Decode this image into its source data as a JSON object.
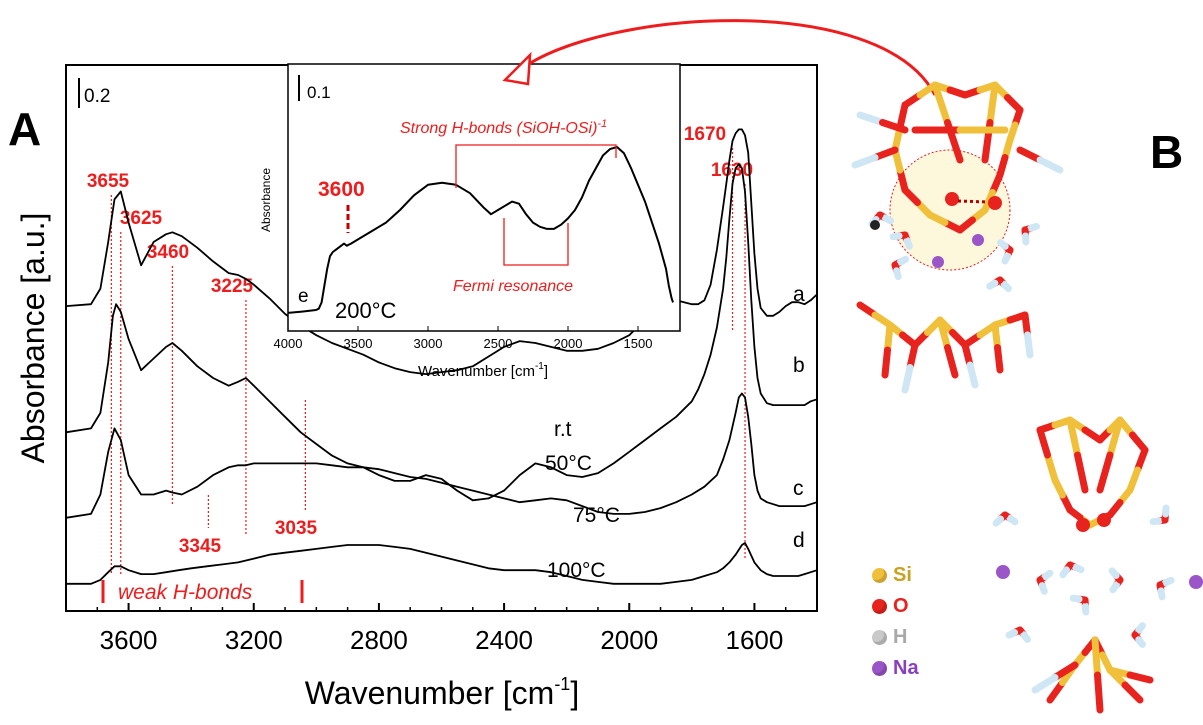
{
  "panel_a_label": "A",
  "panel_b_label": "B",
  "chart_data": [
    {
      "type": "line",
      "panel": "A",
      "xlabel": "Wavenumber [cm",
      "xlabel_sup": "-1",
      "xlabel_close": "]",
      "ylabel": "Absorbance [a.u.]",
      "xlim": [
        3800,
        1400
      ],
      "x_ticks": [
        3600,
        3200,
        2800,
        2400,
        2000,
        1600
      ],
      "scale_bar_label": "0.2",
      "series": [
        {
          "name": "a",
          "x": [
            3800,
            3720,
            3690,
            3665,
            3645,
            3625,
            3600,
            3560,
            3520,
            3480,
            3460,
            3430,
            3380,
            3330,
            3280,
            3250,
            3225,
            3200,
            3150,
            3100,
            3050,
            3000,
            2950,
            2900,
            2850,
            2800,
            2750,
            2700,
            2650,
            2600,
            2550,
            2500,
            2450,
            2400,
            2350,
            2300,
            2250,
            2200,
            2150,
            2100,
            2050,
            2000,
            1950,
            1900,
            1850,
            1800,
            1780,
            1760,
            1740,
            1720,
            1700,
            1690,
            1680,
            1670,
            1660,
            1650,
            1640,
            1630,
            1620,
            1610,
            1600,
            1590,
            1580,
            1560,
            1540,
            1520,
            1500,
            1480,
            1460,
            1440,
            1420,
            1400
          ],
          "y": [
            0.905,
            0.91,
            0.95,
            1.07,
            1.18,
            1.2,
            1.12,
            1.01,
            1.07,
            1.09,
            1.095,
            1.085,
            1.055,
            1.02,
            0.99,
            0.985,
            0.975,
            0.96,
            0.925,
            0.885,
            0.855,
            0.83,
            0.81,
            0.795,
            0.78,
            0.76,
            0.745,
            0.735,
            0.73,
            0.735,
            0.74,
            0.75,
            0.775,
            0.8,
            0.815,
            0.81,
            0.8,
            0.79,
            0.79,
            0.795,
            0.81,
            0.83,
            0.87,
            0.905,
            0.92,
            0.91,
            0.91,
            0.92,
            0.96,
            1.05,
            1.16,
            1.22,
            1.28,
            1.33,
            1.35,
            1.36,
            1.36,
            1.345,
            1.3,
            1.17,
            1.04,
            0.95,
            0.9,
            0.88,
            0.88,
            0.89,
            0.905,
            0.915,
            0.915,
            0.91,
            0.92,
            0.935
          ]
        },
        {
          "name": "b",
          "x": [
            3800,
            3720,
            3690,
            3665,
            3650,
            3640,
            3625,
            3600,
            3560,
            3520,
            3480,
            3460,
            3430,
            3380,
            3330,
            3280,
            3250,
            3225,
            3200,
            3150,
            3100,
            3050,
            3000,
            2950,
            2900,
            2850,
            2800,
            2750,
            2700,
            2650,
            2600,
            2550,
            2500,
            2450,
            2400,
            2350,
            2300,
            2250,
            2200,
            2150,
            2100,
            2050,
            2000,
            1950,
            1900,
            1850,
            1800,
            1780,
            1760,
            1740,
            1720,
            1700,
            1690,
            1680,
            1670,
            1660,
            1650,
            1640,
            1630,
            1620,
            1610,
            1600,
            1590,
            1580,
            1560,
            1540,
            1520,
            1500,
            1480,
            1460,
            1440,
            1420,
            1400
          ],
          "y": [
            0.58,
            0.59,
            0.63,
            0.76,
            0.88,
            0.91,
            0.89,
            0.82,
            0.74,
            0.77,
            0.8,
            0.81,
            0.79,
            0.75,
            0.72,
            0.7,
            0.71,
            0.72,
            0.7,
            0.66,
            0.62,
            0.58,
            0.55,
            0.52,
            0.5,
            0.49,
            0.47,
            0.455,
            0.455,
            0.47,
            0.46,
            0.43,
            0.405,
            0.41,
            0.43,
            0.47,
            0.5,
            0.49,
            0.47,
            0.465,
            0.475,
            0.5,
            0.53,
            0.56,
            0.59,
            0.62,
            0.66,
            0.69,
            0.73,
            0.78,
            0.85,
            0.95,
            1.03,
            1.13,
            1.22,
            1.26,
            1.27,
            1.26,
            1.2,
            1.07,
            0.92,
            0.8,
            0.72,
            0.68,
            0.655,
            0.65,
            0.65,
            0.65,
            0.65,
            0.65,
            0.65,
            0.66,
            0.665
          ]
        },
        {
          "name": "c",
          "x": [
            3800,
            3720,
            3690,
            3665,
            3645,
            3625,
            3600,
            3560,
            3520,
            3480,
            3460,
            3430,
            3380,
            3330,
            3280,
            3250,
            3225,
            3200,
            3150,
            3100,
            3050,
            3000,
            2950,
            2900,
            2850,
            2800,
            2750,
            2700,
            2650,
            2600,
            2550,
            2500,
            2450,
            2400,
            2350,
            2300,
            2250,
            2200,
            2150,
            2100,
            2050,
            2000,
            1950,
            1900,
            1850,
            1800,
            1760,
            1720,
            1700,
            1680,
            1660,
            1650,
            1640,
            1630,
            1620,
            1610,
            1600,
            1590,
            1580,
            1560,
            1540,
            1520,
            1500,
            1480,
            1460,
            1440,
            1420,
            1400
          ],
          "y": [
            0.36,
            0.37,
            0.42,
            0.53,
            0.59,
            0.56,
            0.47,
            0.42,
            0.42,
            0.43,
            0.425,
            0.42,
            0.44,
            0.47,
            0.49,
            0.495,
            0.495,
            0.5,
            0.5,
            0.5,
            0.5,
            0.5,
            0.495,
            0.49,
            0.49,
            0.485,
            0.475,
            0.465,
            0.46,
            0.45,
            0.44,
            0.43,
            0.42,
            0.41,
            0.4,
            0.405,
            0.41,
            0.405,
            0.39,
            0.375,
            0.37,
            0.37,
            0.375,
            0.385,
            0.4,
            0.42,
            0.44,
            0.47,
            0.51,
            0.56,
            0.63,
            0.67,
            0.68,
            0.67,
            0.62,
            0.55,
            0.47,
            0.43,
            0.41,
            0.4,
            0.395,
            0.39,
            0.39,
            0.39,
            0.39,
            0.39,
            0.395,
            0.4
          ]
        },
        {
          "name": "d",
          "x": [
            3800,
            3720,
            3690,
            3665,
            3645,
            3625,
            3600,
            3560,
            3520,
            3480,
            3440,
            3400,
            3350,
            3300,
            3250,
            3200,
            3150,
            3100,
            3050,
            3000,
            2950,
            2900,
            2850,
            2800,
            2750,
            2700,
            2650,
            2600,
            2550,
            2500,
            2450,
            2400,
            2350,
            2300,
            2250,
            2200,
            2150,
            2100,
            2050,
            2000,
            1950,
            1900,
            1850,
            1800,
            1760,
            1720,
            1700,
            1680,
            1660,
            1640,
            1630,
            1620,
            1600,
            1580,
            1560,
            1540,
            1520,
            1500,
            1480,
            1460,
            1440,
            1420,
            1400
          ],
          "y": [
            0.19,
            0.19,
            0.2,
            0.22,
            0.235,
            0.235,
            0.225,
            0.215,
            0.215,
            0.22,
            0.225,
            0.23,
            0.235,
            0.24,
            0.245,
            0.255,
            0.265,
            0.27,
            0.275,
            0.28,
            0.285,
            0.29,
            0.29,
            0.29,
            0.285,
            0.28,
            0.27,
            0.26,
            0.25,
            0.24,
            0.23,
            0.225,
            0.225,
            0.225,
            0.22,
            0.21,
            0.2,
            0.195,
            0.19,
            0.19,
            0.19,
            0.19,
            0.195,
            0.2,
            0.21,
            0.22,
            0.23,
            0.245,
            0.265,
            0.29,
            0.295,
            0.28,
            0.245,
            0.225,
            0.215,
            0.21,
            0.21,
            0.21,
            0.21,
            0.21,
            0.215,
            0.22,
            0.225
          ]
        }
      ],
      "curve_labels": [
        {
          "text": "a"
        },
        {
          "text": "b"
        },
        {
          "text": "r.t"
        },
        {
          "text": "50°C"
        },
        {
          "text": "c"
        },
        {
          "text": "75°C"
        },
        {
          "text": "d"
        },
        {
          "text": "100°C"
        }
      ],
      "annotations": [
        {
          "text": "3655",
          "x": 3655
        },
        {
          "text": "3625",
          "x": 3625
        },
        {
          "text": "3460",
          "x": 3460
        },
        {
          "text": "3225",
          "x": 3225
        },
        {
          "text": "3345",
          "x": 3345
        },
        {
          "text": "3035",
          "x": 3035
        },
        {
          "text": "1670",
          "x": 1670
        },
        {
          "text": "1630",
          "x": 1630
        }
      ],
      "weak_hbonds_label": "weak H-bonds",
      "annotation_color": "#ee1c1c"
    },
    {
      "type": "line",
      "panel": "inset",
      "xlabel": "Wavenumber [cm",
      "xlabel_sup": "-1",
      "xlabel_close": "]",
      "ylabel": "Absorbance",
      "xlim": [
        4000,
        1200
      ],
      "x_ticks": [
        4000,
        3500,
        3000,
        2500,
        2000,
        1500
      ],
      "scale_bar_label": "0.1",
      "series": [
        {
          "name": "e",
          "x": [
            4000,
            3900,
            3800,
            3780,
            3760,
            3740,
            3720,
            3700,
            3680,
            3660,
            3640,
            3620,
            3600,
            3580,
            3550,
            3500,
            3400,
            3300,
            3200,
            3100,
            3000,
            2900,
            2800,
            2700,
            2600,
            2550,
            2500,
            2450,
            2400,
            2350,
            2300,
            2250,
            2200,
            2150,
            2100,
            2050,
            2000,
            1950,
            1900,
            1850,
            1800,
            1750,
            1700,
            1650,
            1600,
            1550,
            1500,
            1450,
            1400,
            1350,
            1300,
            1280,
            1260,
            1250
          ],
          "y": [
            0.005,
            0.008,
            0.012,
            0.015,
            0.03,
            0.07,
            0.11,
            0.14,
            0.15,
            0.155,
            0.16,
            0.165,
            0.17,
            0.165,
            0.17,
            0.18,
            0.2,
            0.22,
            0.25,
            0.285,
            0.31,
            0.315,
            0.31,
            0.29,
            0.255,
            0.24,
            0.25,
            0.26,
            0.27,
            0.265,
            0.24,
            0.22,
            0.21,
            0.205,
            0.205,
            0.215,
            0.23,
            0.25,
            0.28,
            0.32,
            0.35,
            0.38,
            0.395,
            0.4,
            0.385,
            0.35,
            0.31,
            0.27,
            0.22,
            0.17,
            0.11,
            0.07,
            0.04,
            0.03
          ]
        }
      ],
      "annotations": [
        {
          "text": "3600",
          "x": 3600
        },
        {
          "text": "Strong H-bonds (SiOH-OSi)",
          "sup": "-1"
        },
        {
          "text": "Fermi resonance"
        }
      ],
      "label_e": "e",
      "label_temp": "200°C"
    }
  ],
  "legend_b": [
    {
      "label": "Si",
      "color": "#f0c03a",
      "text_color": "#c8a21e"
    },
    {
      "label": "O",
      "color": "#e8231e",
      "text_color": "#e8231e"
    },
    {
      "label": "H",
      "color": "#c9c9c9",
      "text_color": "#a9a9a9"
    },
    {
      "label": "Na",
      "color": "#9a55c9",
      "text_color": "#8a3fbf"
    }
  ]
}
